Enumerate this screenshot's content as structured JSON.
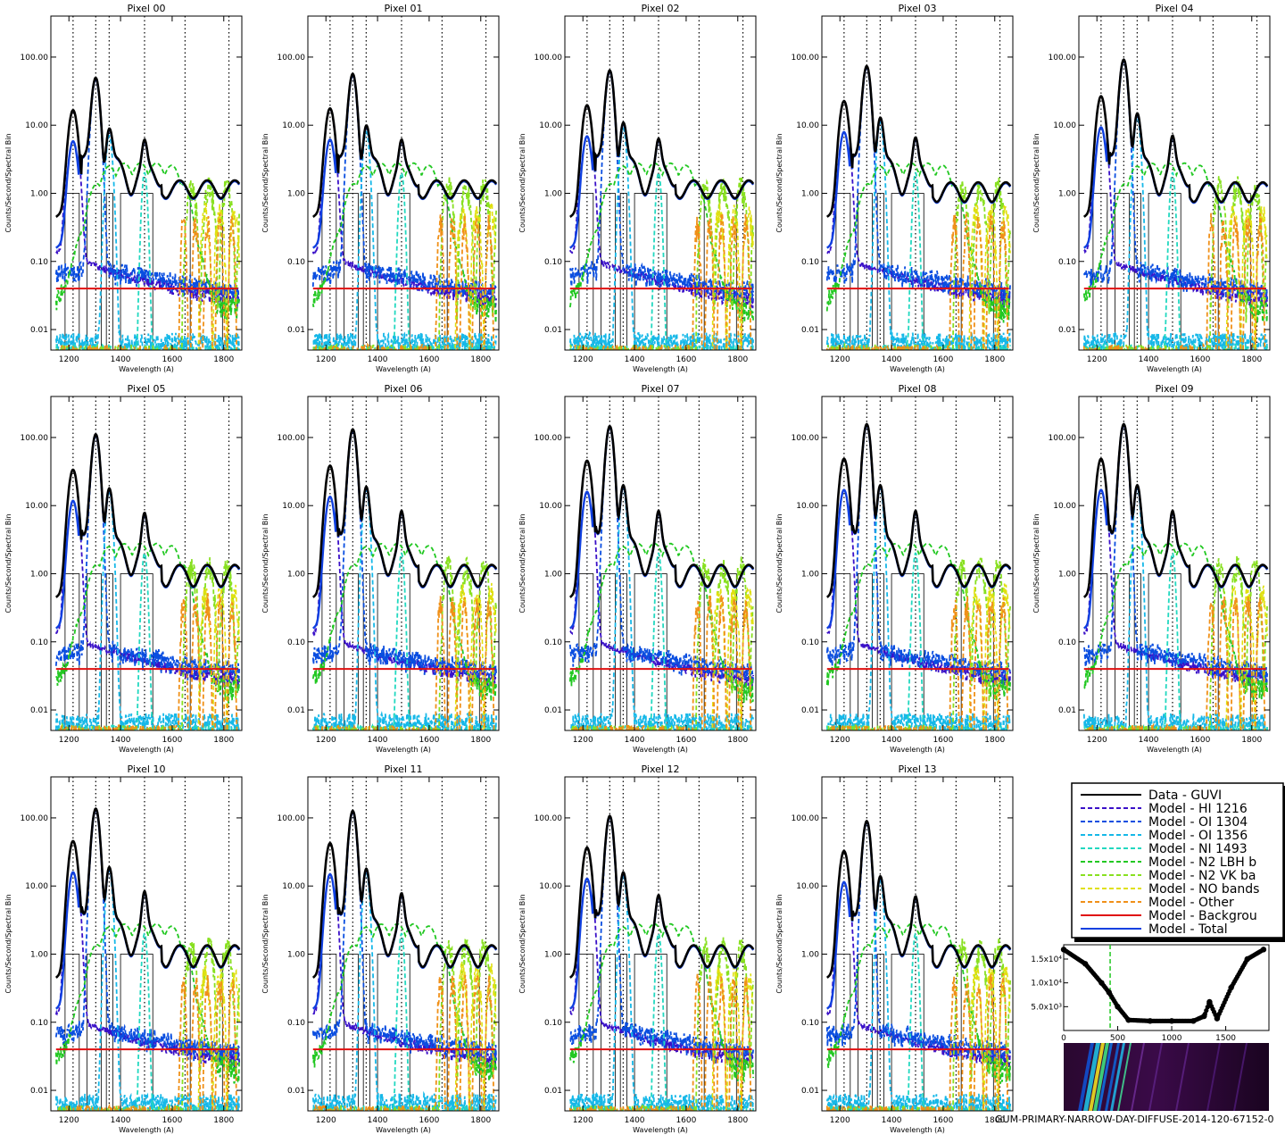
{
  "figure": {
    "footer_text": "GUM-PRIMARY-NARROW-DAY-DIFFUSE-2014-120-67152-0",
    "y_axis_label": "Counts/Second/Spectral Bin",
    "x_axis_label": "Wavelength (A)",
    "x_tick_labels": [
      "1200",
      "1400",
      "1600",
      "1800"
    ],
    "y_tick_labels": [
      "0.01",
      "0.10",
      "1.00",
      "10.00",
      "100.00"
    ]
  },
  "legend": {
    "entries": [
      {
        "label": "Data - GUVI",
        "color": "#000000",
        "style": "solid"
      },
      {
        "label": "Model - HI 1216",
        "color": "#3a10c8",
        "style": "dashed"
      },
      {
        "label": "Model - OI 1304",
        "color": "#0a4ee0",
        "style": "dashed"
      },
      {
        "label": "Model - OI 1356",
        "color": "#16b8e8",
        "style": "dashed"
      },
      {
        "label": "Model - NI 1493",
        "color": "#22d8c0",
        "style": "dashed"
      },
      {
        "label": "Model - N2 LBH b",
        "color": "#22c822",
        "style": "dashed"
      },
      {
        "label": "Model - N2 VK ba",
        "color": "#88e020",
        "style": "dashed"
      },
      {
        "label": "Model - NO bands",
        "color": "#e0e010",
        "style": "dashed"
      },
      {
        "label": "Model - Other",
        "color": "#f09018",
        "style": "dashed"
      },
      {
        "label": "Model - Backgrou",
        "color": "#e01010",
        "style": "solid"
      },
      {
        "label": "Model - Total",
        "color": "#1040e0",
        "style": "solid"
      }
    ]
  },
  "inset": {
    "x_tick_labels": [
      "0",
      "500",
      "1000",
      "1500"
    ],
    "y_tick_labels": [
      "5.0x10³",
      "1.0x10⁴",
      "1.5x10⁴"
    ]
  },
  "chart_data": {
    "type": "line",
    "y_scale": "log",
    "xlim": [
      1130,
      1870
    ],
    "ylim": [
      0.005,
      400
    ],
    "xlabel": "Wavelength (A)",
    "ylabel": "Counts/Second/Spectral Bin",
    "background_level": 0.04,
    "dotted_reference_lines": [
      1216,
      1304,
      1356,
      1493,
      1650,
      1820
    ],
    "panels": [
      {
        "title": "Pixel 00",
        "peaks": {
          "HI1216": 16,
          "OI1304": 48,
          "OI1356": 7,
          "NI1493": 3.3
        },
        "continuum": 1.2
      },
      {
        "title": "Pixel 01",
        "peaks": {
          "HI1216": 17,
          "OI1304": 55,
          "OI1356": 8,
          "NI1493": 3.3
        },
        "continuum": 1.2
      },
      {
        "title": "Pixel 02",
        "peaks": {
          "HI1216": 19,
          "OI1304": 62,
          "OI1356": 9,
          "NI1493": 3.5
        },
        "continuum": 1.2
      },
      {
        "title": "Pixel 03",
        "peaks": {
          "HI1216": 22,
          "OI1304": 72,
          "OI1356": 11,
          "NI1493": 3.8
        },
        "continuum": 1.1
      },
      {
        "title": "Pixel 04",
        "peaks": {
          "HI1216": 26,
          "OI1304": 90,
          "OI1356": 13,
          "NI1493": 4.2
        },
        "continuum": 1.1
      },
      {
        "title": "Pixel 05",
        "peaks": {
          "HI1216": 33,
          "OI1304": 110,
          "OI1356": 16,
          "NI1493": 5.0
        },
        "continuum": 1.0
      },
      {
        "title": "Pixel 06",
        "peaks": {
          "HI1216": 38,
          "OI1304": 130,
          "OI1356": 17,
          "NI1493": 5.5
        },
        "continuum": 1.0
      },
      {
        "title": "Pixel 07",
        "peaks": {
          "HI1216": 45,
          "OI1304": 145,
          "OI1356": 18,
          "NI1493": 5.5
        },
        "continuum": 1.0
      },
      {
        "title": "Pixel 08",
        "peaks": {
          "HI1216": 48,
          "OI1304": 155,
          "OI1356": 18,
          "NI1493": 5.5
        },
        "continuum": 1.0
      },
      {
        "title": "Pixel 09",
        "peaks": {
          "HI1216": 48,
          "OI1304": 155,
          "OI1356": 18,
          "NI1493": 5.5
        },
        "continuum": 1.0
      },
      {
        "title": "Pixel 10",
        "peaks": {
          "HI1216": 45,
          "OI1304": 135,
          "OI1356": 17,
          "NI1493": 5.5
        },
        "continuum": 1.0
      },
      {
        "title": "Pixel 11",
        "peaks": {
          "HI1216": 42,
          "OI1304": 125,
          "OI1356": 16,
          "NI1493": 5.0
        },
        "continuum": 1.0
      },
      {
        "title": "Pixel 12",
        "peaks": {
          "HI1216": 36,
          "OI1304": 105,
          "OI1356": 14,
          "NI1493": 4.5
        },
        "continuum": 1.0
      },
      {
        "title": "Pixel 13",
        "peaks": {
          "HI1216": 32,
          "OI1304": 88,
          "OI1356": 12,
          "NI1493": 4.2
        },
        "continuum": 1.0
      }
    ],
    "inset_profile": {
      "type": "scatter",
      "x": [
        0,
        200,
        350,
        420,
        500,
        600,
        800,
        1000,
        1200,
        1300,
        1350,
        1420,
        1550,
        1700,
        1850
      ],
      "y": [
        17000,
        14000,
        10000,
        8000,
        5000,
        2200,
        2000,
        2000,
        2000,
        3000,
        6000,
        2500,
        9000,
        15000,
        17000
      ],
      "xlim": [
        0,
        1900
      ],
      "ylim": [
        0,
        18000
      ],
      "marker_x": 430
    }
  }
}
